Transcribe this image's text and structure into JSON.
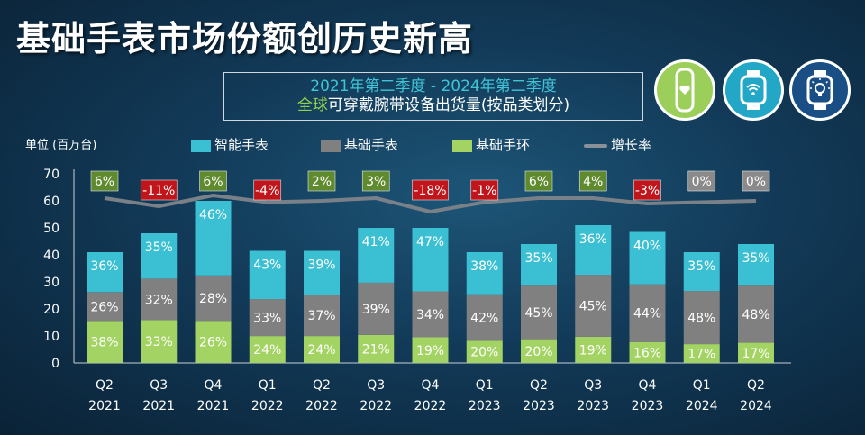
{
  "header": {
    "title": "基础手表市场份额创历史新高",
    "subtitle_line1": "2021年第二季度 - 2024年第二季度",
    "subtitle_line2_highlight": "全球",
    "subtitle_line2_rest": "可穿戴腕带设备出货量(按品类划分)"
  },
  "icons": [
    "fitness-band-icon",
    "smartwatch-wifi-icon",
    "basic-watch-lightbulb-icon"
  ],
  "colors": {
    "smart_watch": "#3bbfd2",
    "basic_watch": "#808080",
    "basic_band": "#a3d463",
    "growth_line": "#7a8088",
    "positive_label_bg": "#5f8a2e",
    "negative_label_bg": "#c0161b",
    "zero_label_bg": "#8a8a8a"
  },
  "chart_data": {
    "type": "bar",
    "stacked": true,
    "unit_label": "单位 (百万台)",
    "ylim": [
      0,
      70
    ],
    "yticks": [
      0,
      10,
      20,
      30,
      40,
      50,
      60,
      70
    ],
    "grid": false,
    "legend_position": "top",
    "categories": [
      {
        "q": "Q2",
        "y": "2021"
      },
      {
        "q": "Q3",
        "y": "2021"
      },
      {
        "q": "Q4",
        "y": "2021"
      },
      {
        "q": "Q1",
        "y": "2022"
      },
      {
        "q": "Q2",
        "y": "2022"
      },
      {
        "q": "Q3",
        "y": "2022"
      },
      {
        "q": "Q4",
        "y": "2022"
      },
      {
        "q": "Q1",
        "y": "2023"
      },
      {
        "q": "Q2",
        "y": "2023"
      },
      {
        "q": "Q3",
        "y": "2023"
      },
      {
        "q": "Q4",
        "y": "2023"
      },
      {
        "q": "Q1",
        "y": "2024"
      },
      {
        "q": "Q2",
        "y": "2024"
      }
    ],
    "totals": [
      41,
      48,
      60,
      41.5,
      41.5,
      49.5,
      50,
      41,
      44,
      51,
      48.5,
      41,
      44
    ],
    "series": [
      {
        "name": "智能手表",
        "key": "smart_watch",
        "shares": [
          "36%",
          "35%",
          "46%",
          "43%",
          "39%",
          "41%",
          "47%",
          "38%",
          "35%",
          "36%",
          "40%",
          "35%",
          "35%"
        ],
        "share_values": [
          36,
          35,
          46,
          43,
          39,
          41,
          47,
          38,
          35,
          36,
          40,
          35,
          35
        ]
      },
      {
        "name": "基础手表",
        "key": "basic_watch",
        "shares": [
          "26%",
          "32%",
          "28%",
          "33%",
          "37%",
          "39%",
          "34%",
          "42%",
          "45%",
          "45%",
          "44%",
          "48%",
          "48%"
        ],
        "share_values": [
          26,
          32,
          28,
          33,
          37,
          39,
          34,
          42,
          45,
          45,
          44,
          48,
          48
        ]
      },
      {
        "name": "基础手环",
        "key": "basic_band",
        "shares": [
          "38%",
          "33%",
          "26%",
          "24%",
          "24%",
          "21%",
          "19%",
          "20%",
          "20%",
          "19%",
          "16%",
          "17%",
          "17%"
        ],
        "share_values": [
          38,
          33,
          26,
          24,
          24,
          21,
          19,
          20,
          20,
          19,
          16,
          17,
          17
        ]
      }
    ],
    "growth": {
      "name": "增长率",
      "labels": [
        "6%",
        "-11%",
        "6%",
        "-4%",
        "2%",
        "3%",
        "-18%",
        "-1%",
        "6%",
        "4%",
        "-3%",
        "0%",
        "0%"
      ],
      "values": [
        6,
        -11,
        6,
        -4,
        2,
        3,
        -18,
        -1,
        6,
        4,
        -3,
        0,
        0
      ],
      "line_y": [
        61,
        58,
        62,
        59.5,
        60,
        61,
        56,
        59.5,
        61,
        61,
        59,
        59.5,
        60
      ]
    }
  }
}
